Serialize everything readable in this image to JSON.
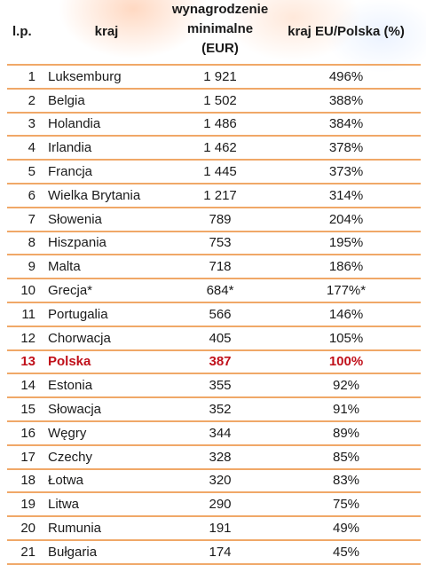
{
  "headers": {
    "lp": "l.p.",
    "kraj": "kraj",
    "wynagrodzenie_line1": "wynagrodzenie",
    "wynagrodzenie_line2": "minimalne",
    "wynagrodzenie_line3": "(EUR)",
    "ratio": "kraj EU/Polska (%)"
  },
  "rows": [
    {
      "lp": "1",
      "kraj": "Luksemburg",
      "wyn": "1 921",
      "pct": "496%"
    },
    {
      "lp": "2",
      "kraj": "Belgia",
      "wyn": "1 502",
      "pct": "388%"
    },
    {
      "lp": "3",
      "kraj": "Holandia",
      "wyn": "1 486",
      "pct": "384%"
    },
    {
      "lp": "4",
      "kraj": "Irlandia",
      "wyn": "1 462",
      "pct": "378%"
    },
    {
      "lp": "5",
      "kraj": "Francja",
      "wyn": "1 445",
      "pct": "373%"
    },
    {
      "lp": "6",
      "kraj": "Wielka Brytania",
      "wyn": "1 217",
      "pct": "314%"
    },
    {
      "lp": "7",
      "kraj": "Słowenia",
      "wyn": "789",
      "pct": "204%"
    },
    {
      "lp": "8",
      "kraj": "Hiszpania",
      "wyn": "753",
      "pct": "195%"
    },
    {
      "lp": "9",
      "kraj": "Malta",
      "wyn": "718",
      "pct": "186%"
    },
    {
      "lp": "10",
      "kraj": "Grecja*",
      "wyn": "684*",
      "pct": "177%*"
    },
    {
      "lp": "11",
      "kraj": "Portugalia",
      "wyn": "566",
      "pct": "146%"
    },
    {
      "lp": "12",
      "kraj": "Chorwacja",
      "wyn": "405",
      "pct": "105%"
    },
    {
      "lp": "13",
      "kraj": "Polska",
      "wyn": "387",
      "pct": "100%"
    },
    {
      "lp": "14",
      "kraj": "Estonia",
      "wyn": "355",
      "pct": "92%"
    },
    {
      "lp": "15",
      "kraj": "Słowacja",
      "wyn": "352",
      "pct": "91%"
    },
    {
      "lp": "16",
      "kraj": "Węgry",
      "wyn": "344",
      "pct": "89%"
    },
    {
      "lp": "17",
      "kraj": "Czechy",
      "wyn": "328",
      "pct": "85%"
    },
    {
      "lp": "18",
      "kraj": "Łotwa",
      "wyn": "320",
      "pct": "83%"
    },
    {
      "lp": "19",
      "kraj": "Litwa",
      "wyn": "290",
      "pct": "75%"
    },
    {
      "lp": "20",
      "kraj": "Rumunia",
      "wyn": "191",
      "pct": "49%"
    },
    {
      "lp": "21",
      "kraj": "Bułgaria",
      "wyn": "174",
      "pct": "45%"
    }
  ],
  "highlight_row_index": 12,
  "colors": {
    "highlight": "#c0101a",
    "rule": "#f0a868"
  }
}
